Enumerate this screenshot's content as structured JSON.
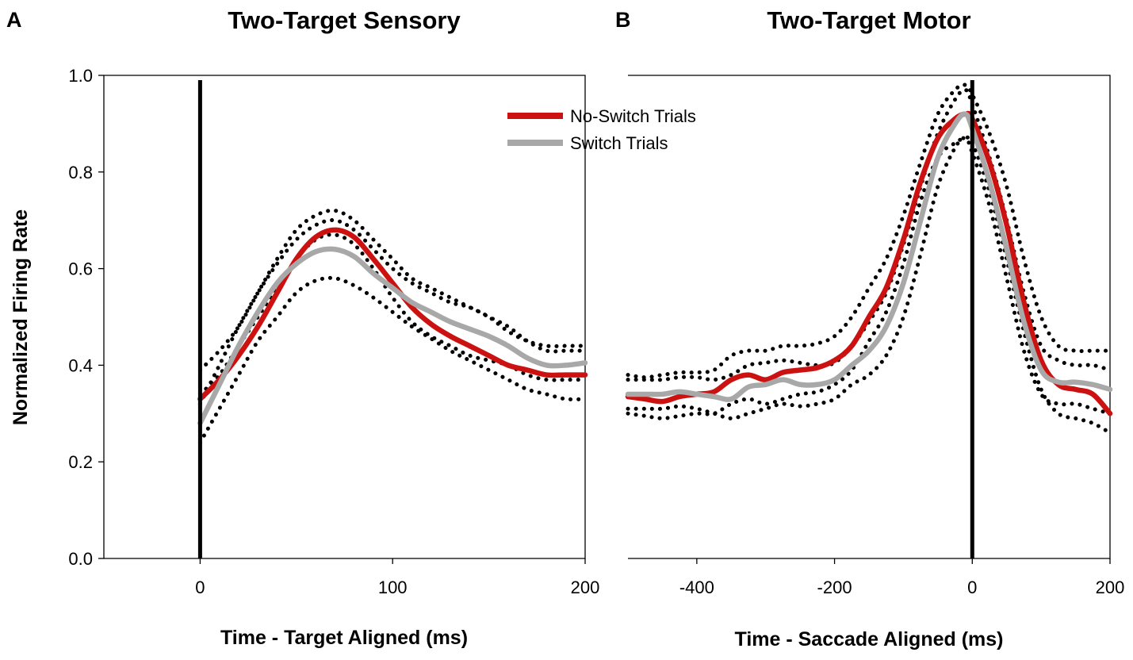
{
  "chart_data": [
    {
      "panel": "A",
      "type": "line",
      "title": "Two-Target Sensory",
      "xlabel": "Time - Target Aligned (ms)",
      "ylabel": "Normalized Firing Rate",
      "xlim": [
        -50,
        200
      ],
      "ylim": [
        0,
        1.0
      ],
      "xticks": [
        0,
        100,
        200
      ],
      "yticks": [
        0.0,
        0.2,
        0.4,
        0.6,
        0.8,
        1.0
      ],
      "ytick_labels": [
        "0.0",
        "0.2",
        "0.4",
        "0.6",
        "0.8",
        "1.0"
      ],
      "vline_at": 0,
      "legend": {
        "position": "top-right",
        "entries": [
          {
            "label": "No-Switch Trials",
            "color": "#cc1111"
          },
          {
            "label": "Switch Trials",
            "color": "#a8a8a8"
          }
        ]
      },
      "series": [
        {
          "name": "No-Switch Trials",
          "style": "solid",
          "color": "#cc1111",
          "x": [
            0,
            10,
            20,
            30,
            40,
            50,
            60,
            70,
            80,
            90,
            100,
            110,
            120,
            130,
            140,
            150,
            160,
            170,
            180,
            190,
            200
          ],
          "y": [
            0.33,
            0.37,
            0.42,
            0.48,
            0.55,
            0.62,
            0.665,
            0.68,
            0.665,
            0.62,
            0.57,
            0.52,
            0.485,
            0.46,
            0.44,
            0.42,
            0.4,
            0.39,
            0.38,
            0.38,
            0.38
          ]
        },
        {
          "name": "Switch Trials",
          "style": "solid",
          "color": "#a8a8a8",
          "x": [
            0,
            10,
            20,
            30,
            40,
            50,
            60,
            70,
            80,
            90,
            100,
            110,
            120,
            130,
            140,
            150,
            160,
            170,
            180,
            190,
            200
          ],
          "y": [
            0.28,
            0.36,
            0.44,
            0.51,
            0.57,
            0.61,
            0.635,
            0.64,
            0.625,
            0.59,
            0.56,
            0.53,
            0.51,
            0.49,
            0.475,
            0.46,
            0.44,
            0.415,
            0.4,
            0.4,
            0.405
          ]
        },
        {
          "name": "No-Switch Trials upper bound",
          "style": "dotted",
          "color": "#000000",
          "x": [
            0,
            10,
            20,
            30,
            40,
            50,
            60,
            70,
            80,
            90,
            100,
            110,
            120,
            130,
            140,
            150,
            160,
            170,
            180,
            190,
            200
          ],
          "y": [
            0.39,
            0.43,
            0.48,
            0.55,
            0.62,
            0.68,
            0.71,
            0.72,
            0.7,
            0.66,
            0.62,
            0.58,
            0.56,
            0.54,
            0.52,
            0.5,
            0.47,
            0.45,
            0.44,
            0.44,
            0.44
          ]
        },
        {
          "name": "No-Switch Trials lower bound",
          "style": "dotted",
          "color": "#000000",
          "x": [
            0,
            10,
            20,
            30,
            40,
            50,
            60,
            70,
            80,
            90,
            100,
            110,
            120,
            130,
            140,
            150,
            160,
            170,
            180,
            190,
            200
          ],
          "y": [
            0.34,
            0.38,
            0.44,
            0.5,
            0.56,
            0.62,
            0.66,
            0.67,
            0.65,
            0.6,
            0.54,
            0.49,
            0.46,
            0.44,
            0.42,
            0.41,
            0.4,
            0.38,
            0.37,
            0.37,
            0.37
          ]
        },
        {
          "name": "Switch Trials upper bound",
          "style": "dotted",
          "color": "#000000",
          "x": [
            0,
            10,
            20,
            30,
            40,
            50,
            60,
            70,
            80,
            90,
            100,
            110,
            120,
            130,
            140,
            150,
            160,
            170,
            180,
            190,
            200
          ],
          "y": [
            0.32,
            0.4,
            0.48,
            0.55,
            0.61,
            0.66,
            0.69,
            0.7,
            0.68,
            0.64,
            0.6,
            0.57,
            0.55,
            0.53,
            0.52,
            0.5,
            0.48,
            0.45,
            0.43,
            0.43,
            0.43
          ]
        },
        {
          "name": "Switch Trials lower bound",
          "style": "dotted",
          "color": "#000000",
          "x": [
            0,
            10,
            20,
            30,
            40,
            50,
            60,
            70,
            80,
            90,
            100,
            110,
            120,
            130,
            140,
            150,
            160,
            170,
            180,
            190,
            200
          ],
          "y": [
            0.24,
            0.31,
            0.38,
            0.45,
            0.5,
            0.55,
            0.575,
            0.58,
            0.565,
            0.54,
            0.51,
            0.48,
            0.455,
            0.43,
            0.41,
            0.39,
            0.37,
            0.35,
            0.34,
            0.33,
            0.33
          ]
        }
      ]
    },
    {
      "panel": "B",
      "type": "line",
      "title": "Two-Target Motor",
      "xlabel": "Time - Saccade Aligned (ms)",
      "ylabel": "",
      "xlim": [
        -500,
        200
      ],
      "ylim": [
        0,
        1.0
      ],
      "xticks": [
        -400,
        -200,
        0,
        200
      ],
      "vline_at": 0,
      "series": [
        {
          "name": "No-Switch Trials",
          "style": "solid",
          "color": "#cc1111",
          "x": [
            -500,
            -475,
            -450,
            -425,
            -400,
            -375,
            -350,
            -325,
            -300,
            -275,
            -250,
            -225,
            -200,
            -175,
            -150,
            -125,
            -100,
            -75,
            -50,
            -25,
            -10,
            0,
            25,
            50,
            75,
            100,
            125,
            150,
            175,
            200
          ],
          "y": [
            0.335,
            0.33,
            0.325,
            0.335,
            0.34,
            0.345,
            0.37,
            0.38,
            0.37,
            0.385,
            0.39,
            0.395,
            0.41,
            0.44,
            0.5,
            0.56,
            0.66,
            0.78,
            0.87,
            0.91,
            0.92,
            0.91,
            0.82,
            0.69,
            0.53,
            0.41,
            0.36,
            0.35,
            0.34,
            0.3
          ]
        },
        {
          "name": "Switch Trials",
          "style": "solid",
          "color": "#a8a8a8",
          "x": [
            -500,
            -475,
            -450,
            -425,
            -400,
            -375,
            -350,
            -325,
            -300,
            -275,
            -250,
            -225,
            -200,
            -175,
            -150,
            -125,
            -100,
            -75,
            -50,
            -25,
            -10,
            0,
            25,
            50,
            75,
            100,
            125,
            150,
            175,
            200
          ],
          "y": [
            0.34,
            0.34,
            0.34,
            0.345,
            0.34,
            0.335,
            0.33,
            0.355,
            0.36,
            0.37,
            0.36,
            0.36,
            0.37,
            0.4,
            0.43,
            0.48,
            0.57,
            0.7,
            0.83,
            0.9,
            0.92,
            0.89,
            0.78,
            0.64,
            0.49,
            0.39,
            0.365,
            0.365,
            0.36,
            0.35
          ]
        },
        {
          "name": "No-Switch Trials upper bound",
          "style": "dotted",
          "color": "#000000",
          "x": [
            -500,
            -475,
            -450,
            -425,
            -400,
            -375,
            -350,
            -325,
            -300,
            -275,
            -250,
            -225,
            -200,
            -175,
            -150,
            -125,
            -100,
            -75,
            -50,
            -25,
            -10,
            0,
            25,
            50,
            75,
            100,
            125,
            150,
            175,
            200
          ],
          "y": [
            0.38,
            0.375,
            0.38,
            0.385,
            0.385,
            0.39,
            0.42,
            0.43,
            0.43,
            0.44,
            0.44,
            0.445,
            0.46,
            0.5,
            0.56,
            0.62,
            0.71,
            0.82,
            0.92,
            0.97,
            0.98,
            0.96,
            0.88,
            0.77,
            0.62,
            0.5,
            0.44,
            0.43,
            0.43,
            0.43
          ]
        },
        {
          "name": "No-Switch Trials lower bound",
          "style": "dotted",
          "color": "#000000",
          "x": [
            -500,
            -475,
            -450,
            -425,
            -400,
            -375,
            -350,
            -325,
            -300,
            -275,
            -250,
            -225,
            -200,
            -175,
            -150,
            -125,
            -100,
            -75,
            -50,
            -25,
            -10,
            0,
            25,
            50,
            75,
            100,
            125,
            150,
            175,
            200
          ],
          "y": [
            0.3,
            0.295,
            0.29,
            0.295,
            0.3,
            0.3,
            0.32,
            0.33,
            0.32,
            0.33,
            0.34,
            0.345,
            0.36,
            0.39,
            0.45,
            0.51,
            0.61,
            0.74,
            0.83,
            0.86,
            0.87,
            0.86,
            0.76,
            0.62,
            0.47,
            0.35,
            0.3,
            0.29,
            0.28,
            0.26
          ]
        },
        {
          "name": "Switch Trials upper bound",
          "style": "dotted",
          "color": "#000000",
          "x": [
            -500,
            -475,
            -450,
            -425,
            -400,
            -375,
            -350,
            -325,
            -300,
            -275,
            -250,
            -225,
            -200,
            -175,
            -150,
            -125,
            -100,
            -75,
            -50,
            -25,
            -10,
            0,
            25,
            50,
            75,
            100,
            125,
            150,
            175,
            200
          ],
          "y": [
            0.37,
            0.37,
            0.37,
            0.375,
            0.375,
            0.37,
            0.38,
            0.4,
            0.405,
            0.41,
            0.405,
            0.4,
            0.405,
            0.44,
            0.49,
            0.55,
            0.65,
            0.77,
            0.88,
            0.95,
            0.97,
            0.94,
            0.83,
            0.7,
            0.55,
            0.44,
            0.41,
            0.4,
            0.4,
            0.39
          ]
        },
        {
          "name": "Switch Trials lower bound",
          "style": "dotted",
          "color": "#000000",
          "x": [
            -500,
            -475,
            -450,
            -425,
            -400,
            -375,
            -350,
            -325,
            -300,
            -275,
            -250,
            -225,
            -200,
            -175,
            -150,
            -125,
            -100,
            -75,
            -50,
            -25,
            -10,
            0,
            25,
            50,
            75,
            100,
            125,
            150,
            175,
            200
          ],
          "y": [
            0.31,
            0.31,
            0.31,
            0.315,
            0.31,
            0.3,
            0.29,
            0.3,
            0.31,
            0.32,
            0.315,
            0.32,
            0.33,
            0.36,
            0.38,
            0.42,
            0.5,
            0.63,
            0.77,
            0.85,
            0.87,
            0.84,
            0.73,
            0.58,
            0.43,
            0.34,
            0.32,
            0.32,
            0.31,
            0.3
          ]
        }
      ]
    }
  ]
}
